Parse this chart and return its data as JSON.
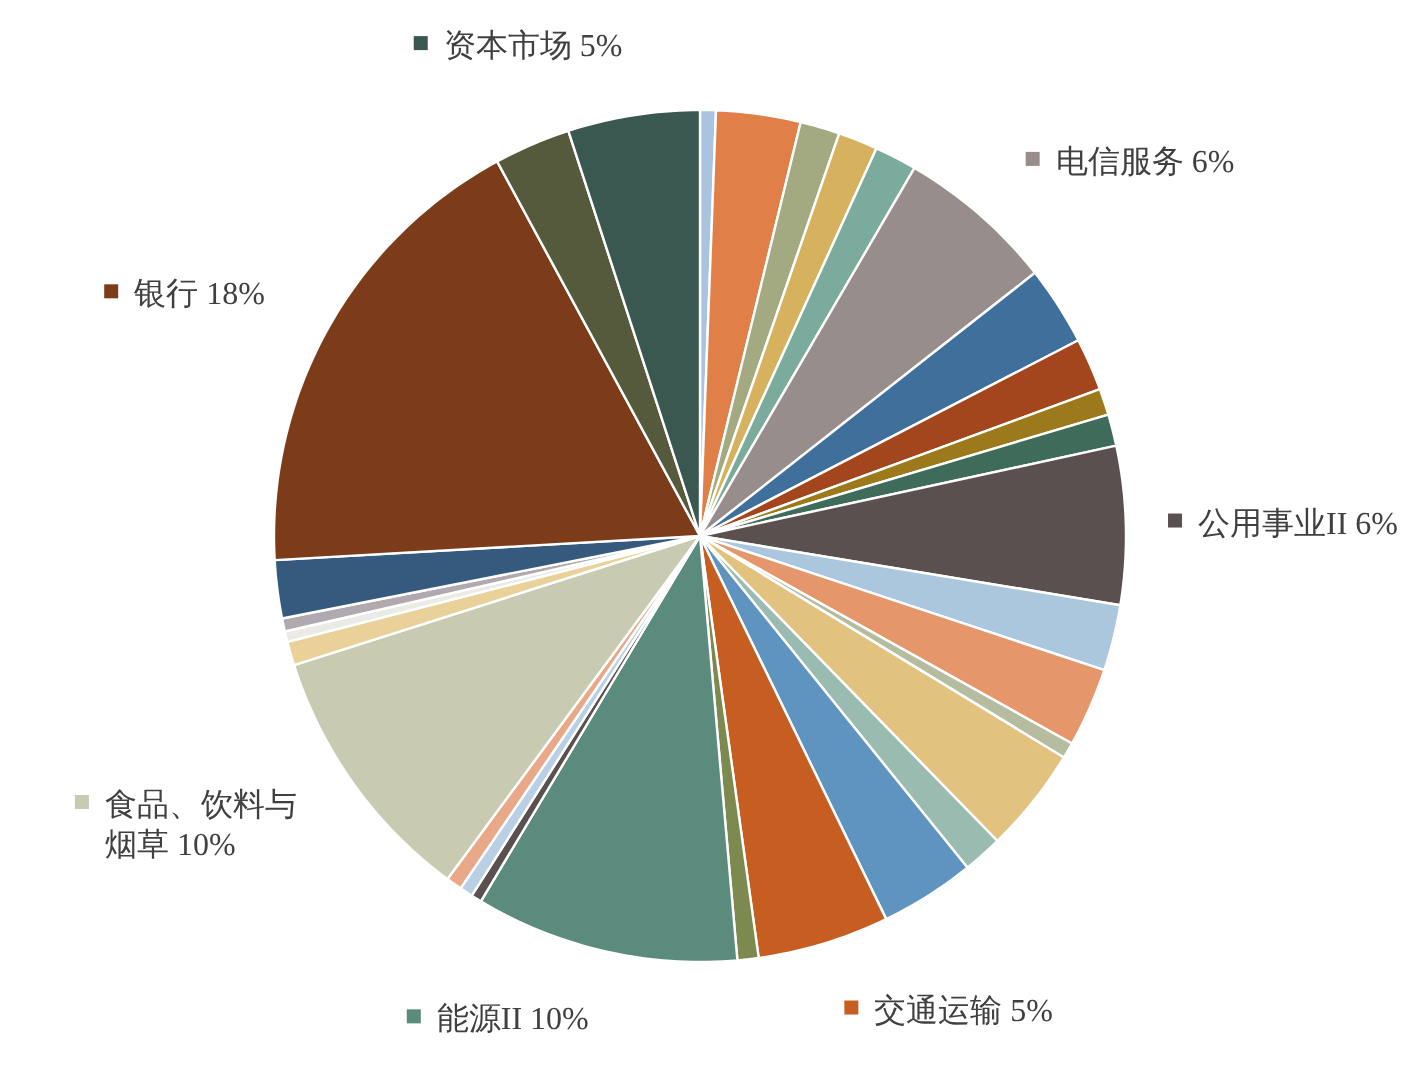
{
  "chart_data": {
    "type": "pie",
    "legend": "right",
    "categories": [
      null,
      null,
      null,
      null,
      null,
      "电信服务",
      null,
      null,
      null,
      null,
      "公用事业II",
      null,
      null,
      null,
      null,
      null,
      null,
      "交通运输",
      null,
      "能源II",
      null,
      null,
      null,
      "食品、饮料与烟草",
      null,
      null,
      null,
      null,
      "银行",
      null,
      "资本市场"
    ],
    "values": [
      0.6,
      3.2,
      1.5,
      1.5,
      1.6,
      6,
      3,
      2,
      1,
      1.2,
      6,
      2.5,
      3,
      0.6,
      4,
      1.5,
      3.6,
      5,
      0.8,
      10,
      0.4,
      0.5,
      0.6,
      10,
      0.9,
      0.4,
      0.5,
      2.2,
      18,
      2.9,
      5
    ],
    "value_labels": [
      null,
      null,
      null,
      null,
      null,
      "6%",
      null,
      null,
      null,
      null,
      "6%",
      null,
      null,
      null,
      null,
      null,
      null,
      "5%",
      null,
      "10%",
      null,
      null,
      null,
      "10%",
      null,
      null,
      null,
      null,
      "18%",
      null,
      "5%"
    ],
    "colors": [
      "#a9c4e0",
      "#e07f47",
      "#a3a981",
      "#d6b25e",
      "#7aab9c",
      "#978d8a",
      "#3f6f9b",
      "#a3461d",
      "#9c7a1c",
      "#3f6b5a",
      "#5b5050",
      "#abc7de",
      "#e5966a",
      "#b6bca0",
      "#e2c27f",
      "#99bbb0",
      "#5f93c0",
      "#c65e22",
      "#7c8a4f",
      "#5b8b7d",
      "#5a5050",
      "#b8cfe4",
      "#e9a888",
      "#c8cbb2",
      "#e9d199",
      "#e9ebe4",
      "#b0aab0",
      "#365a7d",
      "#7c3b19",
      "#545a3b",
      "#3a5750"
    ]
  }
}
